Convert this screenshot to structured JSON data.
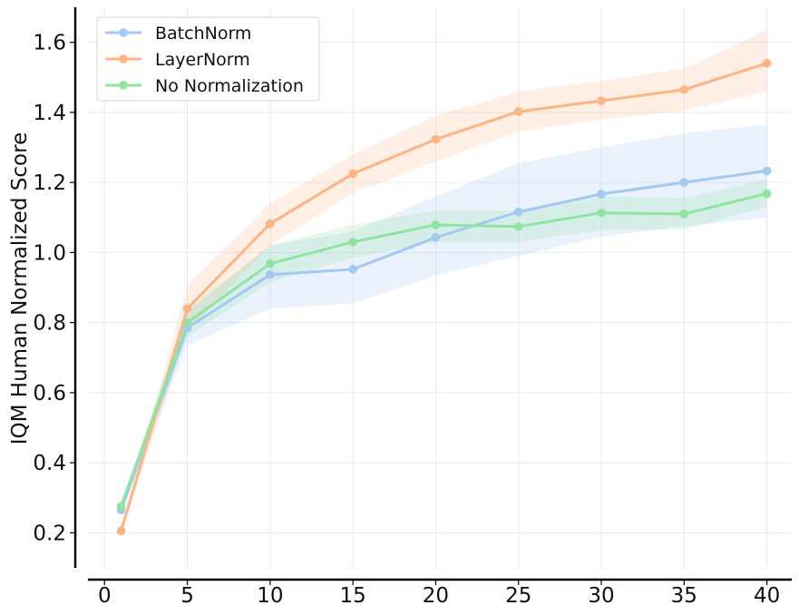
{
  "chart_data": {
    "type": "line",
    "title": "",
    "xlabel": "",
    "ylabel": "IQM Human Normalized Score",
    "xlim": [
      -1,
      41.5
    ],
    "ylim": [
      0.1,
      1.7
    ],
    "xticks": [
      "0",
      "5",
      "10",
      "15",
      "20",
      "25",
      "30",
      "35",
      "40"
    ],
    "yticks": [
      "0.2",
      "0.4",
      "0.6",
      "0.8",
      "1.0",
      "1.2",
      "1.4",
      "1.6"
    ],
    "grid": true,
    "legend_position": "top-left",
    "x": [
      1,
      5,
      10,
      15,
      20,
      25,
      30,
      35,
      40
    ],
    "series": [
      {
        "name": "BatchNorm",
        "color": "#a1c9f4",
        "values": [
          0.265,
          0.785,
          0.937,
          0.952,
          1.043,
          1.116,
          1.167,
          1.2,
          1.233
        ],
        "lower": [
          0.255,
          0.735,
          0.84,
          0.855,
          0.935,
          0.99,
          1.045,
          1.075,
          1.1
        ],
        "upper": [
          0.275,
          0.83,
          1.02,
          1.06,
          1.16,
          1.255,
          1.3,
          1.34,
          1.365
        ]
      },
      {
        "name": "LayerNorm",
        "color": "#ffb482",
        "values": [
          0.205,
          0.84,
          1.082,
          1.225,
          1.323,
          1.402,
          1.433,
          1.465,
          1.54
        ],
        "lower": [
          0.195,
          0.775,
          1.02,
          1.17,
          1.26,
          1.345,
          1.38,
          1.405,
          1.46
        ],
        "upper": [
          0.215,
          0.905,
          1.14,
          1.28,
          1.39,
          1.46,
          1.49,
          1.525,
          1.635
        ]
      },
      {
        "name": "No Normalization",
        "color": "#8de5a1",
        "values": [
          0.275,
          0.8,
          0.968,
          1.03,
          1.079,
          1.074,
          1.113,
          1.11,
          1.168
        ],
        "lower": [
          0.265,
          0.76,
          0.915,
          0.985,
          1.03,
          1.03,
          1.065,
          1.065,
          1.13
        ],
        "upper": [
          0.285,
          0.84,
          1.02,
          1.08,
          1.12,
          1.12,
          1.16,
          1.155,
          1.21
        ]
      }
    ]
  }
}
